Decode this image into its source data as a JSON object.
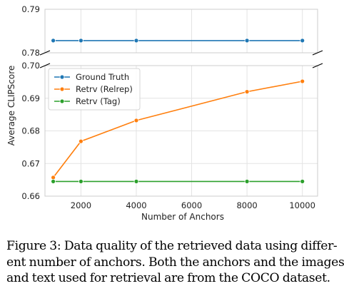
{
  "chart_data": {
    "type": "line",
    "ylabel": "Average CLIPScore",
    "xlabel": "Number of Anchors",
    "x_ticks": [
      2000,
      4000,
      6000,
      8000,
      10000
    ],
    "top_panel": {
      "ylim": [
        0.78,
        0.79
      ],
      "y_ticks": [
        "0.79",
        "0.78"
      ]
    },
    "bottom_panel": {
      "ylim": [
        0.66,
        0.7
      ],
      "y_ticks": [
        "0.70",
        "0.69",
        "0.68",
        "0.67",
        "0.66"
      ]
    },
    "x": [
      1000,
      2000,
      4000,
      8000,
      10000
    ],
    "series": [
      {
        "name": "Ground Truth",
        "color": "#1f77b4",
        "panel": "top",
        "values": [
          0.7828,
          0.7828,
          0.7828,
          0.7828,
          0.7828
        ]
      },
      {
        "name": "Retrv (Relrep)",
        "color": "#ff7f0e",
        "panel": "bottom",
        "values": [
          0.6657,
          0.6768,
          0.6832,
          0.692,
          0.6952
        ]
      },
      {
        "name": "Retrv (Tag)",
        "color": "#2ca02c",
        "panel": "bottom",
        "values": [
          0.6645,
          0.6645,
          0.6645,
          0.6645,
          0.6645
        ]
      }
    ],
    "grid": true,
    "legend": "top-left",
    "broken_axis": true
  },
  "caption": {
    "lines": [
      "Figure 3: Data quality of the retrieved data using differ-",
      "ent number of anchors. Both the anchors and the images",
      "and text used for retrieval are from the COCO dataset."
    ]
  }
}
